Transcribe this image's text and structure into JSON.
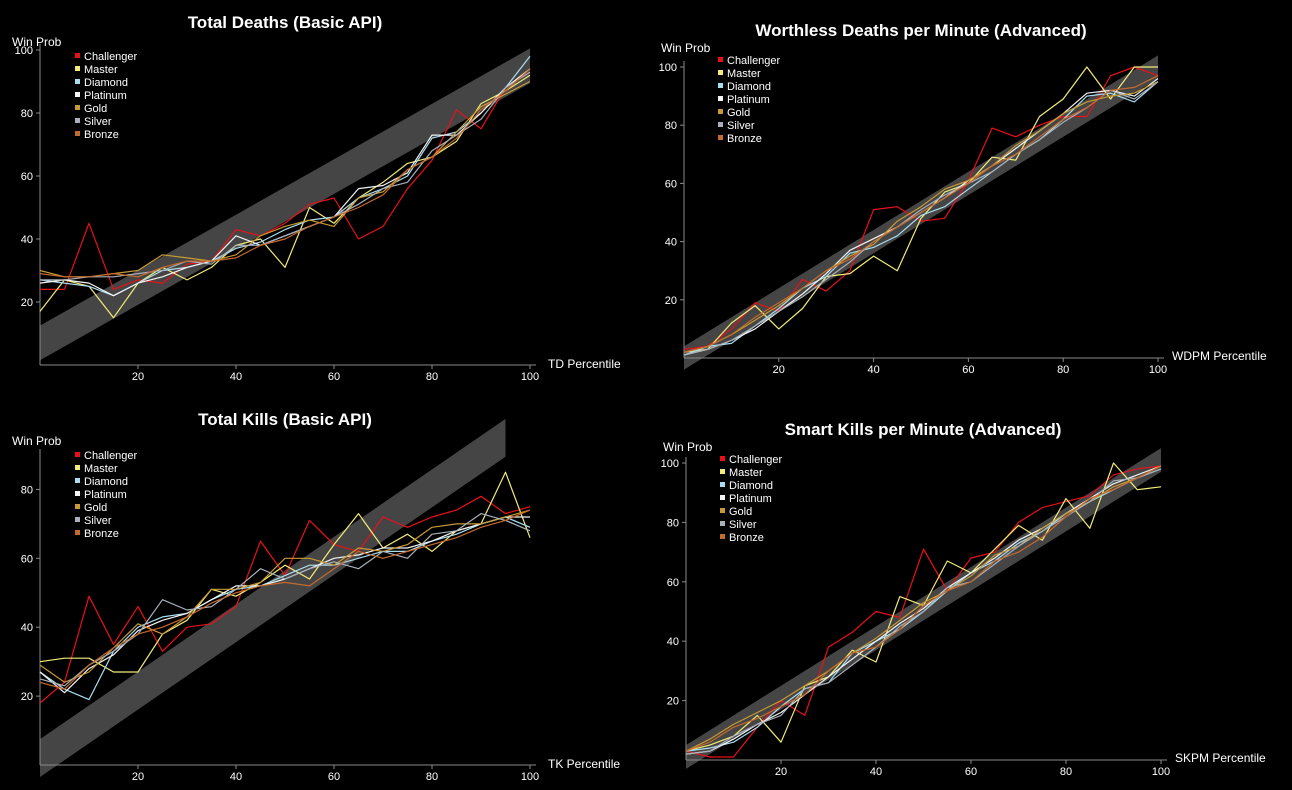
{
  "colors": {
    "Challenger": "#e8111a",
    "Master": "#f2ec78",
    "Diamond": "#a9ddf0",
    "Platinum": "#f4f4f4",
    "Gold": "#c89a34",
    "Silver": "#a9b0ba",
    "Bronze": "#c46a2c",
    "band": "#454545",
    "axis": "#8a8a8a"
  },
  "chart_data": [
    {
      "type": "line",
      "title": "Total Deaths (Basic API)",
      "xlabel": "TD Percentile",
      "ylabel": "Win Prob",
      "xlim": [
        0,
        100
      ],
      "ylim": [
        0,
        100
      ],
      "x_ticks": [
        20,
        40,
        60,
        80,
        100
      ],
      "y_ticks": [
        20,
        40,
        60,
        80,
        100
      ],
      "legend_position": "top-left",
      "band": {
        "start": [
          0,
          7
        ],
        "end": [
          100,
          95
        ],
        "width": 11
      },
      "x": [
        0,
        5,
        10,
        15,
        20,
        25,
        30,
        35,
        40,
        45,
        50,
        55,
        60,
        65,
        70,
        75,
        80,
        85,
        90,
        95,
        100
      ],
      "series": [
        {
          "name": "Challenger",
          "values": [
            24,
            24,
            45,
            24,
            27,
            26,
            32,
            33,
            43,
            41,
            45,
            51,
            53,
            40,
            44,
            56,
            65,
            81,
            75,
            88,
            93
          ]
        },
        {
          "name": "Master",
          "values": [
            17,
            27,
            25,
            15,
            26,
            31,
            27,
            31,
            38,
            40,
            31,
            50,
            45,
            53,
            58,
            64,
            66,
            71,
            83,
            87,
            92
          ]
        },
        {
          "name": "Diamond",
          "values": [
            27,
            26,
            25,
            22,
            26,
            30,
            31,
            33,
            37,
            39,
            43,
            46,
            47,
            53,
            56,
            60,
            72,
            74,
            80,
            88,
            98
          ]
        },
        {
          "name": "Platinum",
          "values": [
            26,
            27,
            26,
            22,
            26,
            28,
            31,
            33,
            41,
            38,
            41,
            44,
            47,
            56,
            57,
            61,
            73,
            73,
            80,
            88,
            94
          ]
        },
        {
          "name": "Gold",
          "values": [
            30,
            28,
            28,
            29,
            30,
            35,
            34,
            33,
            35,
            41,
            44,
            46,
            44,
            53,
            55,
            62,
            66,
            74,
            82,
            86,
            90
          ]
        },
        {
          "name": "Silver",
          "values": [
            27,
            27,
            28,
            28,
            29,
            30,
            33,
            32,
            38,
            38,
            41,
            44,
            47,
            51,
            56,
            58,
            68,
            73,
            78,
            88,
            93
          ]
        },
        {
          "name": "Bronze",
          "values": [
            29,
            28,
            28,
            29,
            28,
            31,
            33,
            33,
            34,
            38,
            40,
            44,
            47,
            50,
            54,
            62,
            66,
            72,
            81,
            87,
            94
          ]
        }
      ]
    },
    {
      "type": "line",
      "title": "Worthless Deaths per Minute (Advanced)",
      "xlabel": "WDPM Percentile",
      "ylabel": "Win Prob",
      "xlim": [
        0,
        100
      ],
      "ylim": [
        0,
        100
      ],
      "x_ticks": [
        20,
        40,
        60,
        80,
        100
      ],
      "y_ticks": [
        20,
        40,
        60,
        80,
        100
      ],
      "legend_position": "top-left",
      "band": {
        "start": [
          0,
          0
        ],
        "end": [
          100,
          100
        ],
        "width": 8
      },
      "x": [
        0,
        5,
        10,
        15,
        20,
        25,
        30,
        35,
        40,
        45,
        50,
        55,
        60,
        65,
        70,
        75,
        80,
        85,
        90,
        95,
        100
      ],
      "series": [
        {
          "name": "Challenger",
          "values": [
            3,
            4,
            10,
            19,
            16,
            27,
            23,
            30,
            51,
            52,
            47,
            48,
            61,
            79,
            76,
            80,
            83,
            83,
            97,
            100,
            97
          ]
        },
        {
          "name": "Master",
          "values": [
            2,
            3,
            12,
            18,
            10,
            17,
            28,
            29,
            35,
            30,
            48,
            57,
            60,
            69,
            68,
            83,
            89,
            100,
            89,
            100,
            100
          ]
        },
        {
          "name": "Diamond",
          "values": [
            1,
            4,
            5,
            11,
            17,
            24,
            28,
            36,
            38,
            42,
            49,
            52,
            58,
            64,
            70,
            75,
            82,
            90,
            91,
            88,
            95
          ]
        },
        {
          "name": "Platinum",
          "values": [
            1,
            3,
            6,
            10,
            16,
            22,
            29,
            37,
            41,
            45,
            50,
            55,
            61,
            66,
            72,
            78,
            84,
            91,
            92,
            90,
            96
          ]
        },
        {
          "name": "Gold",
          "values": [
            2,
            4,
            8,
            13,
            18,
            24,
            30,
            35,
            39,
            47,
            52,
            58,
            61,
            66,
            73,
            78,
            84,
            88,
            90,
            91,
            95
          ]
        },
        {
          "name": "Silver",
          "values": [
            1,
            3,
            6,
            11,
            16,
            21,
            27,
            33,
            40,
            45,
            51,
            56,
            60,
            64,
            70,
            75,
            81,
            86,
            92,
            89,
            95
          ]
        },
        {
          "name": "Bronze",
          "values": [
            2,
            4,
            8,
            14,
            19,
            24,
            30,
            34,
            40,
            45,
            50,
            55,
            60,
            66,
            70,
            76,
            82,
            86,
            92,
            93,
            97
          ]
        }
      ]
    },
    {
      "type": "line",
      "title": "Total Kills (Basic API)",
      "xlabel": "TK Percentile",
      "ylabel": "Win Prob",
      "xlim": [
        0,
        100
      ],
      "ylim": [
        0,
        90
      ],
      "x_ticks": [
        20,
        40,
        60,
        80,
        100
      ],
      "y_ticks": [
        20,
        40,
        60,
        80
      ],
      "legend_position": "top-left",
      "band": {
        "start": [
          0,
          2
        ],
        "end": [
          95,
          95
        ],
        "width": 11
      },
      "x": [
        0,
        5,
        10,
        15,
        20,
        25,
        30,
        35,
        40,
        45,
        50,
        55,
        60,
        65,
        70,
        75,
        80,
        85,
        90,
        95,
        100
      ],
      "series": [
        {
          "name": "Challenger",
          "values": [
            18,
            24,
            49,
            35,
            46,
            33,
            40,
            41,
            46,
            65,
            55,
            71,
            64,
            62,
            72,
            69,
            72,
            74,
            78,
            73,
            75
          ]
        },
        {
          "name": "Master",
          "values": [
            30,
            31,
            31,
            27,
            27,
            38,
            42,
            51,
            49,
            53,
            58,
            54,
            64,
            73,
            63,
            67,
            62,
            68,
            70,
            85,
            66
          ]
        },
        {
          "name": "Diamond",
          "values": [
            27,
            22,
            19,
            33,
            40,
            43,
            44,
            48,
            51,
            52,
            55,
            58,
            58,
            60,
            62,
            62,
            65,
            67,
            70,
            72,
            69
          ]
        },
        {
          "name": "Platinum",
          "values": [
            27,
            21,
            28,
            32,
            39,
            42,
            44,
            48,
            52,
            52,
            54,
            57,
            60,
            61,
            63,
            63,
            65,
            68,
            70,
            72,
            72
          ]
        },
        {
          "name": "Gold",
          "values": [
            29,
            24,
            27,
            34,
            41,
            38,
            43,
            51,
            51,
            53,
            60,
            60,
            58,
            63,
            62,
            64,
            69,
            70,
            70,
            72,
            74
          ]
        },
        {
          "name": "Silver",
          "values": [
            25,
            23,
            29,
            33,
            38,
            48,
            45,
            46,
            51,
            57,
            54,
            57,
            59,
            57,
            62,
            60,
            67,
            68,
            73,
            71,
            68
          ]
        },
        {
          "name": "Bronze",
          "values": [
            24,
            22,
            29,
            34,
            38,
            40,
            43,
            47,
            50,
            52,
            53,
            52,
            57,
            62,
            60,
            62,
            64,
            66,
            69,
            71,
            74
          ]
        }
      ]
    },
    {
      "type": "line",
      "title": "Smart Kills per Minute (Advanced)",
      "xlabel": "SKPM Percentile",
      "ylabel": "Win Prob",
      "xlim": [
        0,
        100
      ],
      "ylim": [
        0,
        100
      ],
      "x_ticks": [
        20,
        40,
        60,
        80,
        100
      ],
      "y_ticks": [
        20,
        40,
        60,
        80,
        100
      ],
      "legend_position": "top-left",
      "band": {
        "start": [
          0,
          1
        ],
        "end": [
          100,
          101
        ],
        "width": 8
      },
      "x": [
        0,
        5,
        10,
        15,
        20,
        25,
        30,
        35,
        40,
        45,
        50,
        55,
        60,
        65,
        70,
        75,
        80,
        85,
        90,
        95,
        100
      ],
      "series": [
        {
          "name": "Challenger",
          "values": [
            3,
            1,
            1,
            11,
            20,
            15,
            38,
            43,
            50,
            48,
            71,
            57,
            68,
            70,
            80,
            85,
            87,
            89,
            96,
            98,
            99
          ]
        },
        {
          "name": "Master",
          "values": [
            3,
            5,
            8,
            15,
            6,
            25,
            28,
            37,
            33,
            55,
            52,
            67,
            63,
            71,
            79,
            74,
            88,
            78,
            100,
            91,
            92
          ]
        },
        {
          "name": "Diamond",
          "values": [
            3,
            4,
            6,
            11,
            18,
            24,
            26,
            36,
            40,
            44,
            50,
            57,
            63,
            67,
            73,
            77,
            83,
            87,
            91,
            95,
            98
          ]
        },
        {
          "name": "Platinum",
          "values": [
            2,
            3,
            7,
            12,
            16,
            22,
            28,
            34,
            40,
            46,
            51,
            58,
            63,
            68,
            74,
            78,
            83,
            88,
            93,
            96,
            99
          ]
        },
        {
          "name": "Gold",
          "values": [
            3,
            7,
            12,
            16,
            20,
            25,
            30,
            36,
            41,
            47,
            53,
            57,
            62,
            69,
            72,
            78,
            83,
            87,
            92,
            95,
            99
          ]
        },
        {
          "name": "Silver",
          "values": [
            2,
            3,
            8,
            12,
            15,
            24,
            26,
            32,
            38,
            45,
            50,
            58,
            60,
            66,
            72,
            77,
            82,
            87,
            94,
            95,
            98
          ]
        },
        {
          "name": "Bronze",
          "values": [
            3,
            6,
            11,
            14,
            18,
            22,
            30,
            36,
            38,
            44,
            52,
            57,
            60,
            67,
            70,
            75,
            82,
            88,
            91,
            95,
            99
          ]
        }
      ]
    }
  ]
}
